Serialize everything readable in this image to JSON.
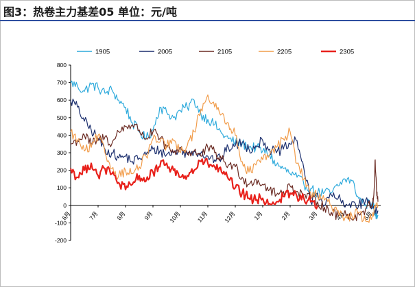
{
  "page": {
    "title": "图3：热卷主力基差05   单位：元/吨"
  },
  "chart_data": {
    "type": "line",
    "title": "图3：热卷主力基差05   单位：元/吨",
    "xlabel": "",
    "ylabel": "",
    "ylim": [
      -200,
      800
    ],
    "yticks": [
      -200,
      -100,
      0,
      100,
      200,
      300,
      400,
      500,
      600,
      700,
      800
    ],
    "x_month_labels": [
      "6月",
      "7月",
      "8月",
      "9月",
      "10月",
      "11月",
      "12月",
      "1月",
      "2月",
      "3月",
      "4月",
      "5月"
    ],
    "x_unit": "month offset from start of June (0 = 6月, 11.3 = end of May)",
    "legend_position": "top",
    "series": [
      {
        "name": "1905",
        "color": "#2eaadc",
        "width": 1.2,
        "points": [
          [
            0.0,
            700
          ],
          [
            0.25,
            680
          ],
          [
            0.5,
            650
          ],
          [
            0.75,
            690
          ],
          [
            1.0,
            670
          ],
          [
            1.25,
            640
          ],
          [
            1.5,
            660
          ],
          [
            1.75,
            600
          ],
          [
            2.0,
            560
          ],
          [
            2.25,
            470
          ],
          [
            2.5,
            420
          ],
          [
            2.75,
            380
          ],
          [
            3.0,
            430
          ],
          [
            3.25,
            560
          ],
          [
            3.5,
            530
          ],
          [
            3.75,
            500
          ],
          [
            4.0,
            540
          ],
          [
            4.25,
            560
          ],
          [
            4.5,
            600
          ],
          [
            4.75,
            520
          ],
          [
            5.0,
            490
          ],
          [
            5.25,
            460
          ],
          [
            5.5,
            410
          ],
          [
            5.75,
            380
          ],
          [
            6.0,
            360
          ],
          [
            6.25,
            350
          ],
          [
            6.5,
            330
          ],
          [
            6.75,
            330
          ],
          [
            7.0,
            310
          ],
          [
            7.25,
            290
          ],
          [
            7.5,
            230
          ],
          [
            7.75,
            210
          ],
          [
            8.0,
            180
          ],
          [
            8.25,
            160
          ],
          [
            8.5,
            120
          ],
          [
            8.75,
            95
          ],
          [
            9.0,
            70
          ],
          [
            9.25,
            75
          ],
          [
            9.5,
            70
          ],
          [
            9.75,
            110
          ],
          [
            10.0,
            150
          ],
          [
            10.25,
            140
          ],
          [
            10.5,
            40
          ],
          [
            10.75,
            5
          ],
          [
            11.0,
            20
          ],
          [
            11.1,
            -60
          ],
          [
            11.2,
            -55
          ]
        ]
      },
      {
        "name": "2005",
        "color": "#1c2f6e",
        "width": 1.2,
        "points": [
          [
            0.0,
            600
          ],
          [
            0.25,
            560
          ],
          [
            0.5,
            480
          ],
          [
            0.75,
            430
          ],
          [
            1.0,
            380
          ],
          [
            1.25,
            320
          ],
          [
            1.5,
            300
          ],
          [
            1.75,
            270
          ],
          [
            2.0,
            280
          ],
          [
            2.25,
            250
          ],
          [
            2.5,
            270
          ],
          [
            2.75,
            290
          ],
          [
            3.0,
            320
          ],
          [
            3.25,
            310
          ],
          [
            3.5,
            290
          ],
          [
            3.75,
            300
          ],
          [
            4.0,
            320
          ],
          [
            4.25,
            290
          ],
          [
            4.5,
            310
          ],
          [
            4.75,
            300
          ],
          [
            5.0,
            280
          ],
          [
            5.25,
            260
          ],
          [
            5.5,
            270
          ],
          [
            5.75,
            330
          ],
          [
            6.0,
            340
          ],
          [
            6.25,
            360
          ],
          [
            6.5,
            320
          ],
          [
            6.75,
            340
          ],
          [
            7.0,
            370
          ],
          [
            7.25,
            320
          ],
          [
            7.5,
            300
          ],
          [
            7.75,
            320
          ],
          [
            8.0,
            350
          ],
          [
            8.25,
            370
          ],
          [
            8.5,
            210
          ],
          [
            8.75,
            20
          ],
          [
            9.0,
            70
          ],
          [
            9.25,
            0
          ],
          [
            9.5,
            60
          ],
          [
            9.75,
            40
          ],
          [
            10.0,
            -10
          ],
          [
            10.25,
            20
          ],
          [
            10.5,
            0
          ],
          [
            10.75,
            30
          ],
          [
            11.0,
            -10
          ],
          [
            11.2,
            -30
          ]
        ]
      },
      {
        "name": "2105",
        "color": "#6b2b23",
        "width": 1.2,
        "points": [
          [
            0.0,
            350
          ],
          [
            0.25,
            370
          ],
          [
            0.5,
            400
          ],
          [
            0.75,
            350
          ],
          [
            1.0,
            370
          ],
          [
            1.25,
            390
          ],
          [
            1.5,
            350
          ],
          [
            1.75,
            420
          ],
          [
            2.0,
            450
          ],
          [
            2.25,
            460
          ],
          [
            2.5,
            430
          ],
          [
            2.75,
            380
          ],
          [
            3.0,
            420
          ],
          [
            3.25,
            380
          ],
          [
            3.5,
            330
          ],
          [
            3.75,
            300
          ],
          [
            4.0,
            330
          ],
          [
            4.25,
            300
          ],
          [
            4.5,
            310
          ],
          [
            4.75,
            280
          ],
          [
            5.0,
            330
          ],
          [
            5.25,
            300
          ],
          [
            5.5,
            260
          ],
          [
            5.75,
            230
          ],
          [
            6.0,
            220
          ],
          [
            6.25,
            160
          ],
          [
            6.5,
            120
          ],
          [
            6.75,
            150
          ],
          [
            7.0,
            120
          ],
          [
            7.25,
            90
          ],
          [
            7.5,
            60
          ],
          [
            7.75,
            80
          ],
          [
            8.0,
            110
          ],
          [
            8.25,
            80
          ],
          [
            8.5,
            60
          ],
          [
            8.75,
            40
          ],
          [
            9.0,
            20
          ],
          [
            9.25,
            -10
          ],
          [
            9.5,
            -40
          ],
          [
            9.75,
            -60
          ],
          [
            10.0,
            -30
          ],
          [
            10.25,
            -80
          ],
          [
            10.5,
            -50
          ],
          [
            10.75,
            -20
          ],
          [
            11.0,
            10
          ],
          [
            11.05,
            60
          ],
          [
            11.1,
            260
          ],
          [
            11.15,
            80
          ],
          [
            11.2,
            20
          ]
        ]
      },
      {
        "name": "2205",
        "color": "#f19d4c",
        "width": 1.2,
        "points": [
          [
            0.0,
            420
          ],
          [
            0.25,
            370
          ],
          [
            0.5,
            310
          ],
          [
            0.75,
            330
          ],
          [
            1.0,
            400
          ],
          [
            1.25,
            300
          ],
          [
            1.5,
            210
          ],
          [
            1.75,
            170
          ],
          [
            2.0,
            200
          ],
          [
            2.25,
            180
          ],
          [
            2.5,
            220
          ],
          [
            2.75,
            280
          ],
          [
            3.0,
            380
          ],
          [
            3.25,
            360
          ],
          [
            3.5,
            340
          ],
          [
            3.75,
            370
          ],
          [
            4.0,
            300
          ],
          [
            4.25,
            340
          ],
          [
            4.5,
            420
          ],
          [
            4.75,
            550
          ],
          [
            5.0,
            630
          ],
          [
            5.25,
            560
          ],
          [
            5.5,
            520
          ],
          [
            5.75,
            470
          ],
          [
            6.0,
            400
          ],
          [
            6.25,
            250
          ],
          [
            6.5,
            190
          ],
          [
            6.75,
            230
          ],
          [
            7.0,
            260
          ],
          [
            7.25,
            290
          ],
          [
            7.5,
            330
          ],
          [
            7.75,
            380
          ],
          [
            8.0,
            420
          ],
          [
            8.25,
            240
          ],
          [
            8.5,
            150
          ],
          [
            8.75,
            70
          ],
          [
            9.0,
            50
          ],
          [
            9.25,
            30
          ],
          [
            9.5,
            0
          ],
          [
            9.75,
            -30
          ],
          [
            10.0,
            -70
          ],
          [
            10.25,
            -60
          ],
          [
            10.5,
            -40
          ],
          [
            10.75,
            -90
          ],
          [
            11.0,
            -60
          ],
          [
            11.1,
            -10
          ],
          [
            11.2,
            0
          ]
        ]
      },
      {
        "name": "2305",
        "color": "#e8211b",
        "width": 2.2,
        "points": [
          [
            0.0,
            210
          ],
          [
            0.25,
            160
          ],
          [
            0.5,
            200
          ],
          [
            0.75,
            240
          ],
          [
            1.0,
            170
          ],
          [
            1.25,
            210
          ],
          [
            1.5,
            180
          ],
          [
            1.75,
            130
          ],
          [
            2.0,
            90
          ],
          [
            2.25,
            120
          ],
          [
            2.5,
            170
          ],
          [
            2.75,
            140
          ],
          [
            3.0,
            190
          ],
          [
            3.25,
            220
          ],
          [
            3.5,
            240
          ],
          [
            3.75,
            200
          ],
          [
            4.0,
            160
          ],
          [
            4.25,
            170
          ],
          [
            4.5,
            200
          ],
          [
            4.75,
            250
          ],
          [
            5.0,
            240
          ],
          [
            5.25,
            220
          ],
          [
            5.5,
            190
          ],
          [
            5.75,
            150
          ],
          [
            6.0,
            100
          ],
          [
            6.25,
            70
          ],
          [
            6.5,
            40
          ],
          [
            6.75,
            30
          ],
          [
            7.0,
            40
          ],
          [
            7.25,
            10
          ],
          [
            7.5,
            20
          ],
          [
            7.75,
            50
          ],
          [
            8.0,
            70
          ],
          [
            8.25,
            50
          ],
          [
            8.5,
            40
          ],
          [
            8.75,
            20
          ],
          [
            9.0,
            0
          ]
        ]
      }
    ]
  }
}
